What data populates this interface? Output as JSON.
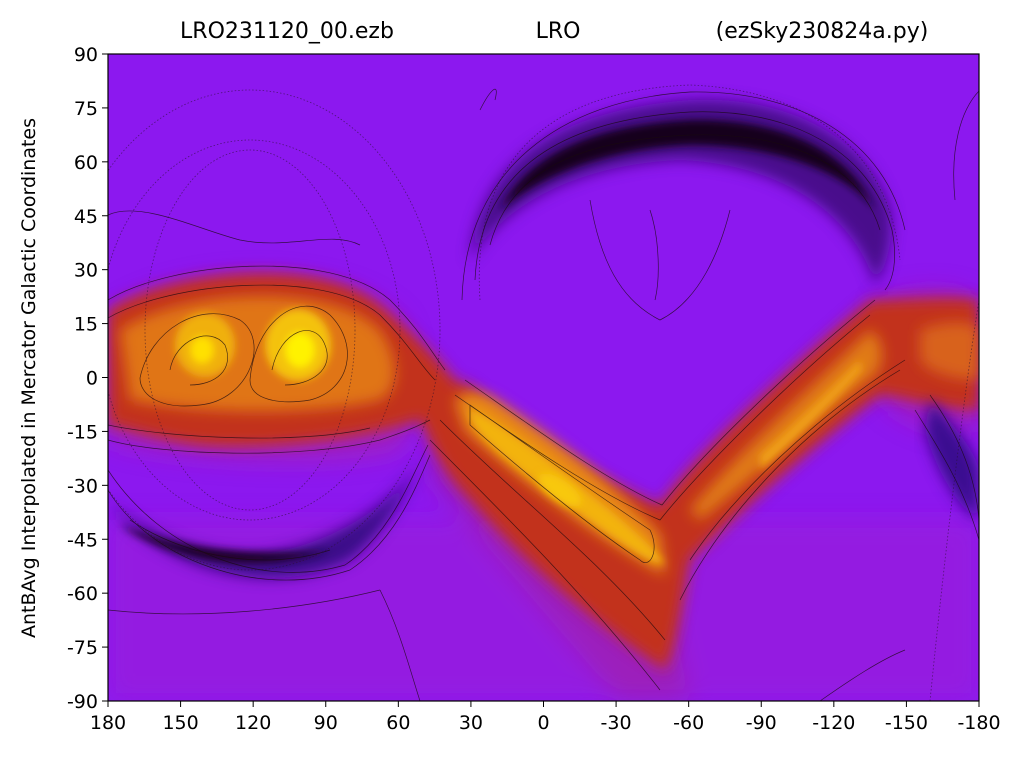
{
  "title": {
    "left": "LRO231120_00.ezb",
    "center": "LRO",
    "right": "(ezSky230824a.py)"
  },
  "chart_data": {
    "type": "heatmap",
    "title": "LRO231120_00.ezb LRO (ezSky230824a.py)",
    "xlabel": "",
    "ylabel": "AntBAvg Interpolated in Mercator Galactic Coordinates",
    "xlim": [
      180,
      -180
    ],
    "ylim": [
      -90,
      90
    ],
    "x_ticks": [
      "180",
      "150",
      "120",
      "90",
      "60",
      "30",
      "0",
      "-30",
      "-60",
      "-90",
      "-120",
      "-150",
      "-180"
    ],
    "y_ticks": [
      "90",
      "75",
      "60",
      "45",
      "30",
      "15",
      "0",
      "-15",
      "-30",
      "-45",
      "-60",
      "-75",
      "-90"
    ],
    "colormap": "gnuplot",
    "colors": {
      "background_low": "#8a16f0",
      "cold_region": "#14001f",
      "mid": "#c12d28",
      "hot": "#f0a010",
      "peak": "#ffee00"
    },
    "contours": true,
    "grid": false,
    "features": [
      {
        "name": "galactic band (east)",
        "lon_range": [
          180,
          50
        ],
        "lat_center": 3
      },
      {
        "name": "bright peak 1",
        "lon": 143,
        "lat": 6
      },
      {
        "name": "bright peak 2",
        "lon": 97,
        "lat": 5
      },
      {
        "name": "diagonal ridge",
        "lon_range": [
          30,
          -50
        ],
        "lat_range": [
          -5,
          -50
        ]
      },
      {
        "name": "rising ridge",
        "lon_range": [
          -55,
          -140
        ],
        "lat_range": [
          -35,
          5
        ]
      },
      {
        "name": "cold arc north",
        "lon_range": [
          25,
          -130
        ],
        "lat_center": 60
      },
      {
        "name": "cold arc south",
        "lon_range": [
          175,
          70
        ],
        "lat_center": -48
      }
    ]
  }
}
